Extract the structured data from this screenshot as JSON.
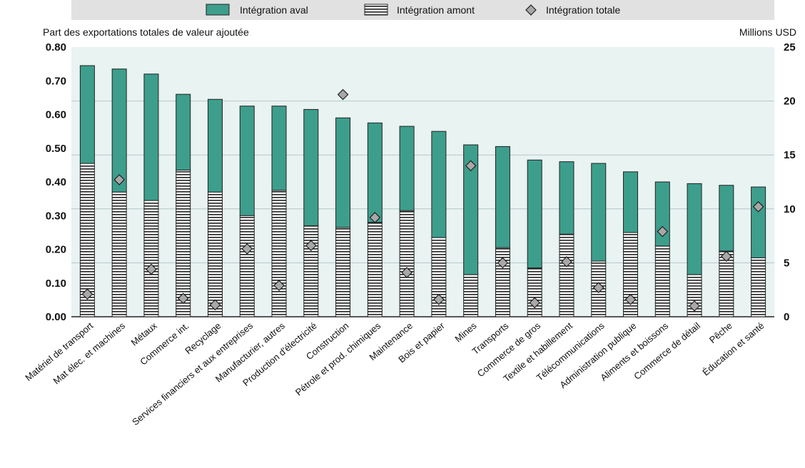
{
  "chart_data": {
    "type": "bar",
    "stacked": true,
    "legend_position": "top",
    "y_left_label": "Part des exportations totales de valeur ajoutée",
    "y_right_label": "Millions USD",
    "ylim_left": [
      0,
      0.8
    ],
    "ylim_right": [
      0,
      25
    ],
    "y_left_ticks": [
      "0.00",
      "0.10",
      "0.20",
      "0.30",
      "0.40",
      "0.50",
      "0.60",
      "0.70",
      "0.80"
    ],
    "y_right_ticks": [
      "0",
      "5",
      "10",
      "15",
      "20",
      "25"
    ],
    "grid": true,
    "categories": [
      "Matériel de transport",
      "Mat élec. et machines",
      "Métaux",
      "Commerce int.",
      "Recyclage",
      "Services financiers et aux entreprises",
      "Manufacturier, autres",
      "Production d'électricité",
      "Construction",
      "Pétrole et prod. chimiques",
      "Maintenance",
      "Bois et papier",
      "Mines",
      "Transports",
      "Commerce de gros",
      "Textile et habillement",
      "Télécommunications",
      "Administration publique",
      "Aliments et boissons",
      "Commerce de détail",
      "Pêche",
      "Éducation et santé"
    ],
    "series": [
      {
        "name": "Intégration amont",
        "axis": "left",
        "pattern": "horizontal-stripes",
        "values": [
          0.455,
          0.37,
          0.345,
          0.435,
          0.37,
          0.3,
          0.375,
          0.27,
          0.265,
          0.28,
          0.315,
          0.235,
          0.125,
          0.205,
          0.145,
          0.245,
          0.165,
          0.25,
          0.21,
          0.125,
          0.195,
          0.175
        ]
      },
      {
        "name": "Intégration aval",
        "axis": "left",
        "color": "#3d9e8c",
        "values": [
          0.29,
          0.365,
          0.375,
          0.225,
          0.275,
          0.325,
          0.25,
          0.345,
          0.325,
          0.295,
          0.25,
          0.315,
          0.385,
          0.3,
          0.32,
          0.215,
          0.29,
          0.18,
          0.19,
          0.27,
          0.195,
          0.21
        ]
      },
      {
        "name": "Intégration totale",
        "axis": "right",
        "marker": "diamond",
        "color": "#a8a8a8",
        "values": [
          2.1,
          12.7,
          4.4,
          1.7,
          1.1,
          6.3,
          2.9,
          6.6,
          20.6,
          9.2,
          4.1,
          1.6,
          14.0,
          5.0,
          1.3,
          5.1,
          2.7,
          1.6,
          7.9,
          1.0,
          5.6,
          10.2
        ]
      }
    ]
  }
}
